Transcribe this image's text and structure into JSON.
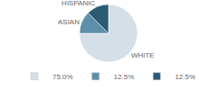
{
  "chart_data": {
    "type": "pie",
    "categories": [
      "WHITE",
      "ASIAN",
      "HISPANIC"
    ],
    "values": [
      75.0,
      12.5,
      12.5
    ],
    "value_labels": [
      "75.0%",
      "12.5%",
      "12.5%"
    ],
    "colors": [
      "#d4dfe8",
      "#5e8faa",
      "#2b5a72"
    ],
    "legend": "bottom"
  }
}
